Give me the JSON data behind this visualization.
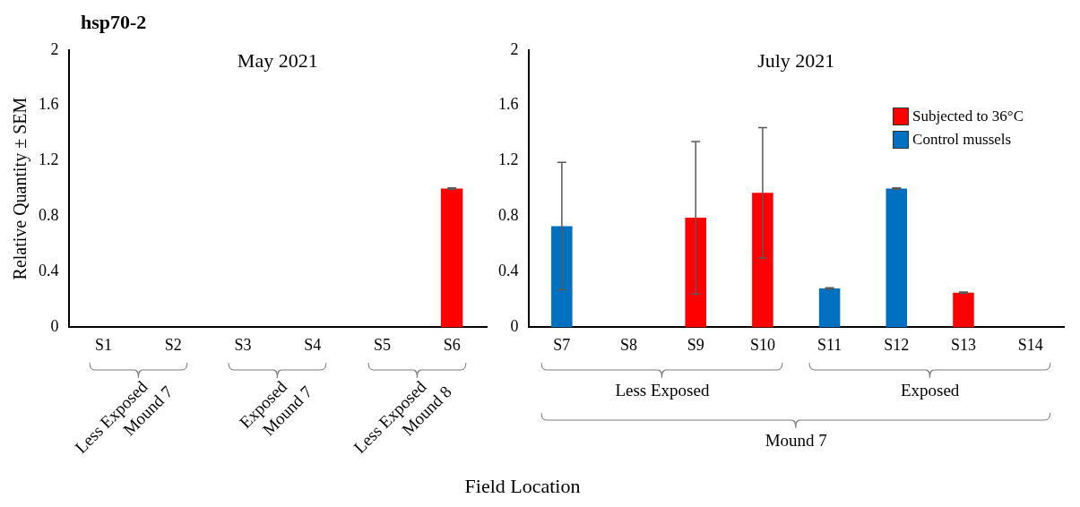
{
  "chart_data": [
    {
      "type": "bar",
      "title": "hsp70-2",
      "subtitle": "May 2021",
      "ylabel": "Relative Quantity ± SEM",
      "xlabel": "Field Location",
      "categories": [
        "S1",
        "S2",
        "S3",
        "S4",
        "S5",
        "S6"
      ],
      "values": [
        null,
        null,
        null,
        null,
        null,
        1.0
      ],
      "colors": [
        "#ff0000",
        "#ff0000",
        "#ff0000",
        "#ff0000",
        "#ff0000",
        "#ff0000"
      ],
      "errors": [
        null,
        null,
        null,
        null,
        null,
        0.005
      ],
      "ylim": [
        0,
        2
      ],
      "yticks": [
        0,
        0.4,
        0.8,
        1.2,
        1.6,
        2
      ],
      "grid": false,
      "annotations": [
        "Less Exposed Mound 7",
        "Exposed Mound 7",
        "Less Exposed Mound 8"
      ]
    },
    {
      "type": "bar",
      "title": "July 2021",
      "categories": [
        "S7",
        "S8",
        "S9",
        "S10",
        "S11",
        "S12",
        "S13",
        "S14"
      ],
      "ylim": [
        0,
        2
      ],
      "yticks": [
        0,
        0.4,
        0.8,
        1.2,
        1.6,
        2
      ],
      "grid": false,
      "legend": "top right",
      "series": [
        {
          "name": "Subjected to 36°C",
          "color": "#ff0000",
          "values": [
            null,
            null,
            0.79,
            0.97,
            null,
            null,
            0.25,
            null
          ],
          "errors": [
            null,
            null,
            0.55,
            0.47,
            null,
            null,
            0.005,
            null
          ]
        },
        {
          "name": "Control mussels",
          "color": "#0070c0",
          "values": [
            0.73,
            null,
            null,
            null,
            0.28,
            1.0,
            null,
            null
          ],
          "errors": [
            0.46,
            null,
            null,
            null,
            0.005,
            0.005,
            null,
            null
          ]
        }
      ],
      "annotations": [
        "Less Exposed",
        "Exposed",
        "Mound 7"
      ]
    }
  ]
}
